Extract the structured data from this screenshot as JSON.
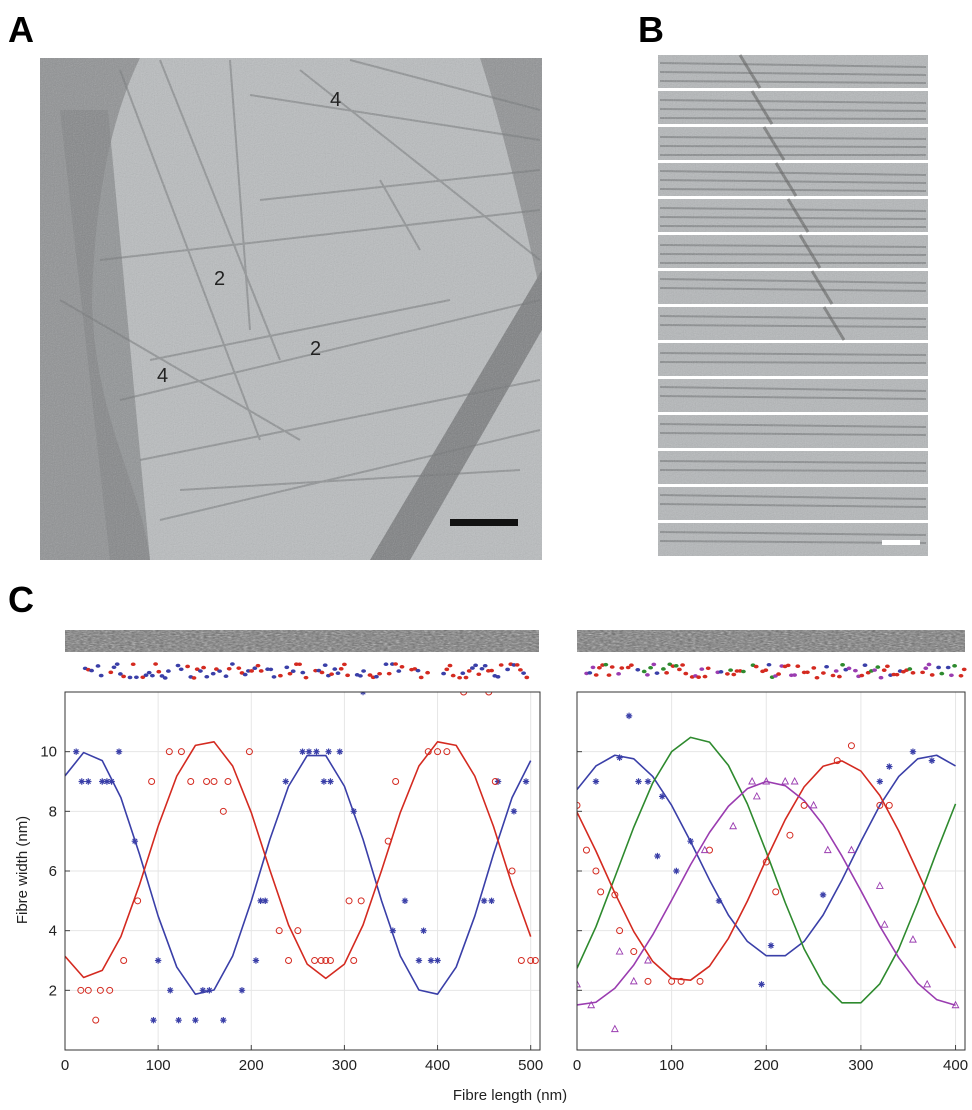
{
  "panel_a": {
    "label": "A",
    "annotations": [
      "4",
      "2",
      "2",
      "4"
    ]
  },
  "panel_b": {
    "label": "B"
  },
  "panel_c": {
    "label": "C",
    "xlabel": "Fibre length (nm)",
    "ylabel": "Fibre width (nm)"
  },
  "chart_data": [
    {
      "type": "line",
      "xlim": [
        0,
        510
      ],
      "ylim": [
        0,
        12
      ],
      "xticks": [
        0,
        100,
        200,
        300,
        400,
        500
      ],
      "yticks": [
        2,
        4,
        6,
        8,
        10
      ],
      "ytick_labels": true,
      "grid": true,
      "series": [
        {
          "type": "line",
          "color": "#3a3fa8",
          "x": [
            0,
            20,
            40,
            60,
            80,
            100,
            120,
            140,
            160,
            180,
            200,
            220,
            240,
            260,
            280,
            300,
            320,
            340,
            360,
            380,
            400,
            420,
            440,
            460,
            480,
            500
          ],
          "values": [
            9.19,
            9.97,
            9.7,
            8.46,
            6.56,
            4.49,
            2.78,
            1.87,
            2.01,
            3.15,
            4.99,
            7.06,
            8.84,
            9.87,
            9.87,
            8.84,
            7.06,
            4.99,
            3.15,
            2.01,
            1.87,
            2.78,
            4.49,
            6.56,
            8.46,
            9.7
          ]
        },
        {
          "type": "line",
          "color": "#d42a20",
          "x": [
            0,
            20,
            40,
            60,
            80,
            100,
            120,
            140,
            160,
            180,
            200,
            220,
            240,
            260,
            280,
            300,
            320,
            340,
            360,
            380,
            400,
            420,
            440,
            460,
            480,
            500
          ],
          "values": [
            3.14,
            2.43,
            2.67,
            3.8,
            5.54,
            7.5,
            9.18,
            10.21,
            10.33,
            9.52,
            7.96,
            6.03,
            4.19,
            2.88,
            2.4,
            2.88,
            4.19,
            6.03,
            7.96,
            9.52,
            10.33,
            10.21,
            9.18,
            7.5,
            5.54,
            3.8
          ]
        },
        {
          "type": "scatter",
          "marker": "star",
          "color": "#3a3fa8",
          "x": [
            12,
            18,
            25,
            40,
            45,
            50,
            58,
            75,
            95,
            100,
            113,
            122,
            140,
            148,
            155,
            170,
            190,
            205,
            210,
            215,
            237,
            255,
            262,
            270,
            278,
            285,
            283,
            295,
            310,
            320,
            352,
            365,
            380,
            385,
            393,
            400,
            450,
            458,
            465,
            482,
            495
          ],
          "values": [
            10,
            9,
            9,
            9,
            9,
            9,
            10,
            7,
            1,
            3,
            2,
            1,
            1,
            2,
            2,
            1,
            2,
            3,
            5,
            5,
            9,
            10,
            10,
            10,
            9,
            9,
            10,
            10,
            8,
            12,
            4,
            5,
            3,
            4,
            3,
            3,
            5,
            5,
            9,
            8,
            9
          ]
        },
        {
          "type": "scatter",
          "marker": "circle",
          "color": "#d42a20",
          "x": [
            17,
            25,
            33,
            38,
            48,
            63,
            78,
            93,
            112,
            125,
            135,
            152,
            160,
            170,
            175,
            198,
            230,
            240,
            250,
            268,
            275,
            280,
            285,
            305,
            310,
            318,
            347,
            355,
            390,
            400,
            410,
            428,
            455,
            462,
            480,
            490,
            500,
            505
          ],
          "values": [
            2,
            2,
            1,
            2,
            2,
            3,
            5,
            9,
            10,
            10,
            9,
            9,
            9,
            8,
            9,
            10,
            4,
            3,
            4,
            3,
            3,
            3,
            3,
            5,
            3,
            5,
            7,
            9,
            10,
            10,
            10,
            12,
            12,
            9,
            6,
            3,
            3,
            3
          ]
        }
      ]
    },
    {
      "type": "line",
      "xlim": [
        0,
        410
      ],
      "ylim": [
        0,
        12
      ],
      "xticks": [
        0,
        100,
        200,
        300,
        400
      ],
      "yticks": [
        2,
        4,
        6,
        8,
        10
      ],
      "ytick_labels": false,
      "grid": true,
      "series": [
        {
          "type": "line",
          "color": "#3a3fa8",
          "x": [
            0,
            20,
            40,
            60,
            80,
            100,
            120,
            140,
            160,
            180,
            200,
            220,
            240,
            260,
            280,
            300,
            320,
            340,
            360,
            380,
            400
          ],
          "values": [
            8.73,
            9.52,
            9.88,
            9.76,
            9.17,
            8.2,
            6.99,
            5.7,
            4.52,
            3.64,
            3.16,
            3.16,
            3.64,
            4.52,
            5.7,
            6.99,
            8.2,
            9.17,
            9.76,
            9.88,
            9.52
          ]
        },
        {
          "type": "line",
          "color": "#2e8a2e",
          "x": [
            0,
            20,
            40,
            60,
            80,
            100,
            120,
            140,
            160,
            180,
            200,
            220,
            240,
            260,
            280,
            300,
            320,
            340,
            360,
            380,
            400
          ],
          "values": [
            2.74,
            4.13,
            5.79,
            7.47,
            8.95,
            10.0,
            10.48,
            10.32,
            9.54,
            8.25,
            6.64,
            4.94,
            3.39,
            2.22,
            1.58,
            1.58,
            2.22,
            3.39,
            4.94,
            6.64,
            8.25
          ]
        },
        {
          "type": "line",
          "color": "#d42a20",
          "x": [
            0,
            20,
            40,
            60,
            80,
            100,
            120,
            140,
            160,
            180,
            200,
            220,
            240,
            260,
            280,
            300,
            320,
            340,
            360,
            380,
            400
          ],
          "values": [
            7.97,
            6.67,
            5.26,
            3.97,
            2.97,
            2.4,
            2.34,
            2.81,
            3.74,
            4.99,
            6.39,
            7.72,
            8.82,
            9.51,
            9.69,
            9.35,
            8.53,
            7.34,
            5.97,
            4.59,
            3.42
          ]
        },
        {
          "type": "line",
          "color": "#9a3cb0",
          "x": [
            0,
            20,
            40,
            60,
            80,
            100,
            120,
            140,
            160,
            180,
            200,
            220,
            240,
            260,
            280,
            300,
            320,
            340,
            360,
            380,
            400
          ],
          "values": [
            1.51,
            1.6,
            2.07,
            2.85,
            3.86,
            5.02,
            6.21,
            7.29,
            8.17,
            8.76,
            9.0,
            8.86,
            8.36,
            7.55,
            6.5,
            5.34,
            4.15,
            3.09,
            2.24,
            1.69,
            1.5
          ]
        },
        {
          "type": "scatter",
          "marker": "star",
          "color": "#3a3fa8",
          "x": [
            20,
            45,
            55,
            65,
            75,
            85,
            90,
            105,
            120,
            150,
            205,
            195,
            260,
            320,
            330,
            355,
            375
          ],
          "values": [
            9,
            9.8,
            11.2,
            9,
            9,
            6.5,
            8.5,
            6,
            7,
            5,
            3.5,
            2.2,
            5.2,
            9,
            9.5,
            10,
            9.7
          ]
        },
        {
          "type": "scatter",
          "marker": "circle",
          "color": "#d42a20",
          "x": [
            0,
            10,
            20,
            25,
            40,
            45,
            60,
            75,
            100,
            110,
            130,
            140,
            200,
            210,
            225,
            240,
            275,
            290,
            320,
            330
          ],
          "values": [
            8.2,
            6.7,
            6,
            5.3,
            5.2,
            4,
            3.3,
            2.3,
            2.3,
            2.3,
            2.3,
            6.7,
            6.3,
            5.3,
            7.2,
            8.2,
            9.7,
            10.2,
            8.2,
            8.2
          ]
        },
        {
          "type": "scatter",
          "marker": "triangle",
          "color": "#9a3cb0",
          "x": [
            0,
            15,
            40,
            45,
            60,
            75,
            135,
            165,
            185,
            190,
            200,
            220,
            230,
            250,
            265,
            290,
            320,
            325,
            355,
            370,
            400
          ],
          "values": [
            2.2,
            1.5,
            0.7,
            3.3,
            2.3,
            3,
            6.7,
            7.5,
            9,
            8.5,
            9,
            9,
            9,
            8.2,
            6.7,
            6.7,
            5.5,
            4.2,
            3.7,
            2.2,
            1.5
          ]
        }
      ]
    }
  ]
}
